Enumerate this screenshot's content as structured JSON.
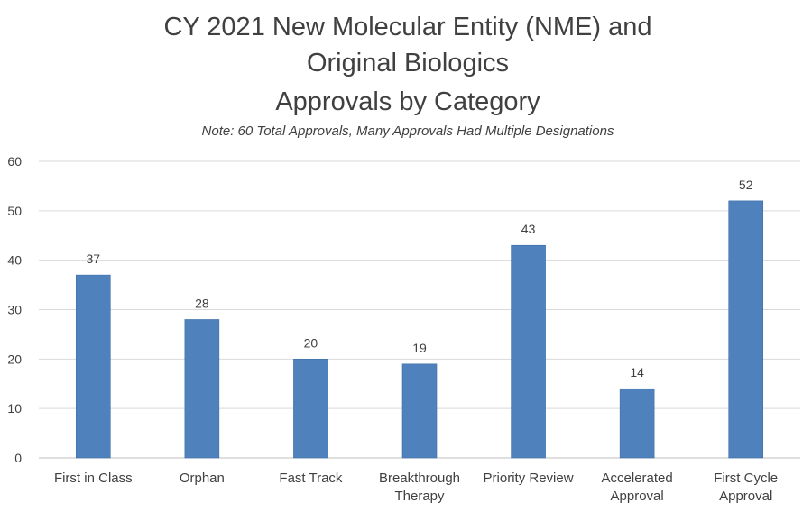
{
  "chart_data": {
    "type": "bar",
    "title": [
      "CY 2021 New Molecular Entity (NME) and",
      "Original Biologics",
      "Approvals by Category"
    ],
    "subtitle": "Note: 60 Total Approvals, Many Approvals Had Multiple Designations",
    "categories": [
      [
        "First in Class"
      ],
      [
        "Orphan"
      ],
      [
        "Fast Track"
      ],
      [
        "Breakthrough",
        "Therapy"
      ],
      [
        "Priority Review"
      ],
      [
        "Accelerated",
        "Approval"
      ],
      [
        "First Cycle",
        "Approval"
      ]
    ],
    "values": [
      37,
      28,
      20,
      19,
      43,
      14,
      52
    ],
    "data_labels": [
      "37",
      "28",
      "20",
      "19",
      "43",
      "14",
      "52"
    ],
    "ylim": [
      0,
      60
    ],
    "yticks": [
      0,
      10,
      20,
      30,
      40,
      50,
      60
    ],
    "ytick_labels": [
      "0",
      "10",
      "20",
      "30",
      "40",
      "50",
      "60"
    ],
    "grid": true,
    "legend": "none",
    "colors": {
      "bar": "#4f81bd",
      "text": "#404040",
      "grid": "#d9d9d9"
    }
  }
}
